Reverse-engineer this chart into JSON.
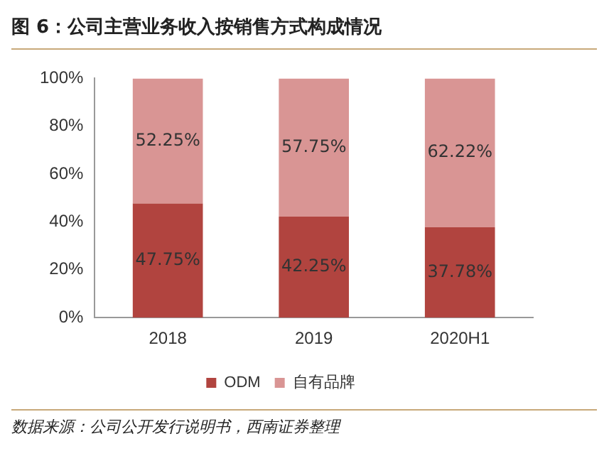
{
  "chart_data": {
    "type": "bar",
    "title": "图 6：公司主营业务收入按销售方式构成情况",
    "stacked": true,
    "categories": [
      "2018",
      "2019",
      "2020H1"
    ],
    "series": [
      {
        "name": "ODM",
        "color": "#b1443f",
        "values": [
          47.75,
          42.25,
          37.78
        ],
        "value_labels": [
          "47.75%",
          "42.25%",
          "37.78%"
        ]
      },
      {
        "name": "自有品牌",
        "color": "#d99594",
        "values": [
          52.25,
          57.75,
          62.22
        ],
        "value_labels": [
          "52.25%",
          "57.75%",
          "62.22%"
        ]
      }
    ],
    "ylim": [
      0,
      100
    ],
    "yticks": [
      {
        "value": 0,
        "label": "0%"
      },
      {
        "value": 20,
        "label": "20%"
      },
      {
        "value": 40,
        "label": "40%"
      },
      {
        "value": 60,
        "label": "60%"
      },
      {
        "value": 80,
        "label": "80%"
      },
      {
        "value": 100,
        "label": "100%"
      }
    ],
    "grid": false,
    "legend": "bottom",
    "annotations": [
      "数据来源：公司公开发行说明书，西南证券整理"
    ]
  }
}
